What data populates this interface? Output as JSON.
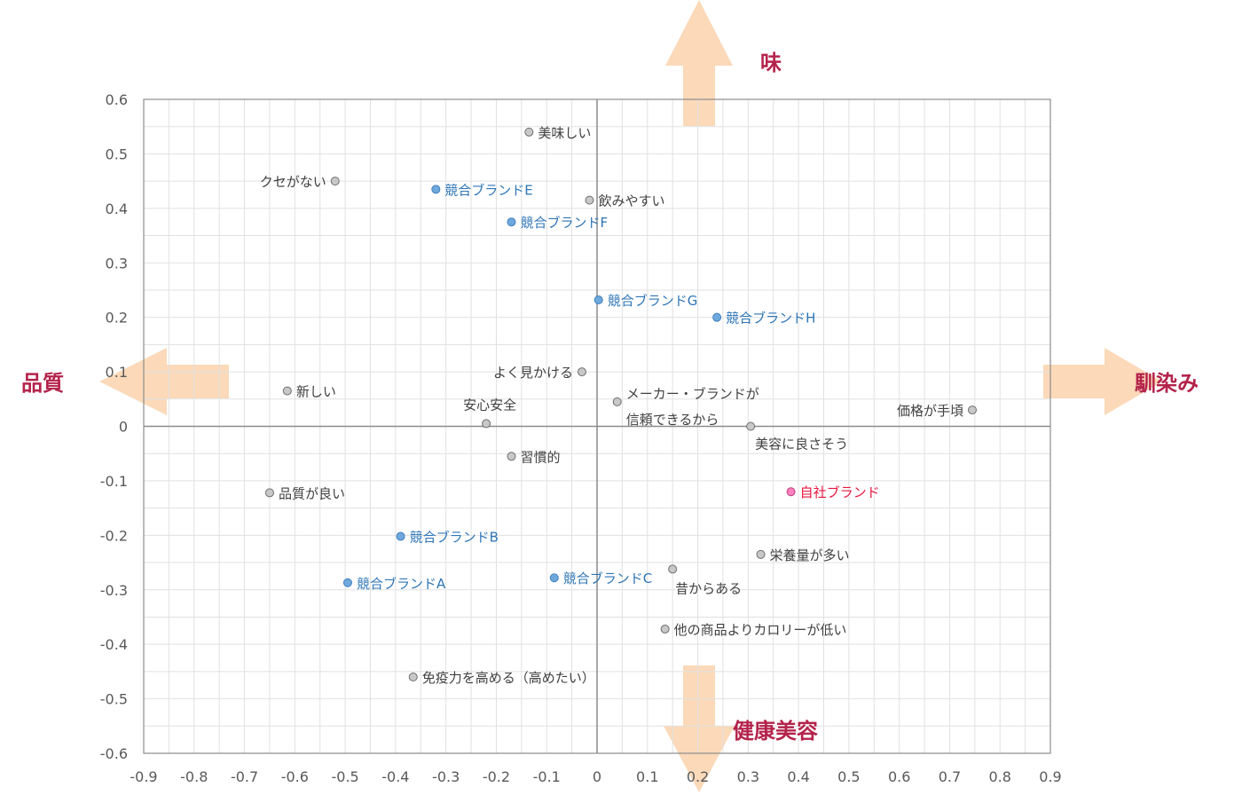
{
  "chart_data": {
    "type": "scatter",
    "title": "",
    "xlabel": "",
    "ylabel": "",
    "xlim": [
      -0.9,
      0.9
    ],
    "ylim": [
      -0.6,
      0.6
    ],
    "x_ticks": [
      "-0.9",
      "-0.8",
      "-0.7",
      "-0.6",
      "-0.5",
      "-0.4",
      "-0.3",
      "-0.2",
      "-0.1",
      "0",
      "0.1",
      "0.2",
      "0.3",
      "0.4",
      "0.5",
      "0.6",
      "0.7",
      "0.8",
      "0.9"
    ],
    "y_ticks": [
      "0.6",
      "0.5",
      "0.4",
      "0.3",
      "0.2",
      "0.1",
      "0",
      "-0.1",
      "-0.2",
      "-0.3",
      "-0.4",
      "-0.5",
      "-0.6"
    ],
    "grid": true,
    "direction_labels": {
      "top": "味",
      "bottom": "健康美容",
      "left": "品質",
      "right": "馴染み"
    },
    "colors": {
      "attribute_point": "#c8c8c8",
      "competitor_point": "#6fa8dc",
      "own_point": "#ff80c0",
      "competitor_text": "#2e75b6",
      "own_text": "#e8173f",
      "arrow": "#fbd7b5",
      "direction_text": "#b4234b"
    },
    "points": [
      {
        "label": "美味しい",
        "x": -0.135,
        "y": 0.54,
        "group": "attribute"
      },
      {
        "label": "クセがない",
        "x": -0.52,
        "y": 0.45,
        "group": "attribute"
      },
      {
        "label": "飲みやすい",
        "x": -0.015,
        "y": 0.415,
        "group": "attribute"
      },
      {
        "label": "よく見かける",
        "x": -0.03,
        "y": 0.1,
        "group": "attribute"
      },
      {
        "label": "新しい",
        "x": -0.615,
        "y": 0.065,
        "group": "attribute"
      },
      {
        "label": "メーカー・ブランドが",
        "label2": "信頼できるから",
        "x": 0.04,
        "y": 0.045,
        "group": "attribute"
      },
      {
        "label": "安心安全",
        "x": -0.22,
        "y": 0.005,
        "group": "attribute"
      },
      {
        "label": "価格が手頃",
        "x": 0.745,
        "y": 0.03,
        "group": "attribute"
      },
      {
        "label": "美容に良さそう",
        "x": 0.305,
        "y": 0.0,
        "group": "attribute"
      },
      {
        "label": "習慣的",
        "x": -0.17,
        "y": -0.055,
        "group": "attribute"
      },
      {
        "label": "品質が良い",
        "x": -0.65,
        "y": -0.122,
        "group": "attribute"
      },
      {
        "label": "栄養量が多い",
        "x": 0.325,
        "y": -0.235,
        "group": "attribute"
      },
      {
        "label": "昔からある",
        "x": 0.15,
        "y": -0.262,
        "group": "attribute"
      },
      {
        "label": "他の商品よりカロリーが低い",
        "x": 0.135,
        "y": -0.372,
        "group": "attribute"
      },
      {
        "label": "免疫力を高める（高めたい）",
        "x": -0.365,
        "y": -0.46,
        "group": "attribute"
      },
      {
        "label": "競合ブランドE",
        "x": -0.32,
        "y": 0.435,
        "group": "competitor"
      },
      {
        "label": "競合ブランドF",
        "x": -0.17,
        "y": 0.375,
        "group": "competitor"
      },
      {
        "label": "競合ブランドG",
        "x": 0.003,
        "y": 0.232,
        "group": "competitor"
      },
      {
        "label": "競合ブランドH",
        "x": 0.238,
        "y": 0.2,
        "group": "competitor"
      },
      {
        "label": "競合ブランドB",
        "x": -0.39,
        "y": -0.202,
        "group": "competitor"
      },
      {
        "label": "競合ブランドA",
        "x": -0.495,
        "y": -0.287,
        "group": "competitor"
      },
      {
        "label": "競合ブランドC",
        "x": -0.085,
        "y": -0.278,
        "group": "competitor"
      },
      {
        "label": "自社ブランド",
        "x": 0.385,
        "y": -0.12,
        "group": "own"
      }
    ]
  }
}
